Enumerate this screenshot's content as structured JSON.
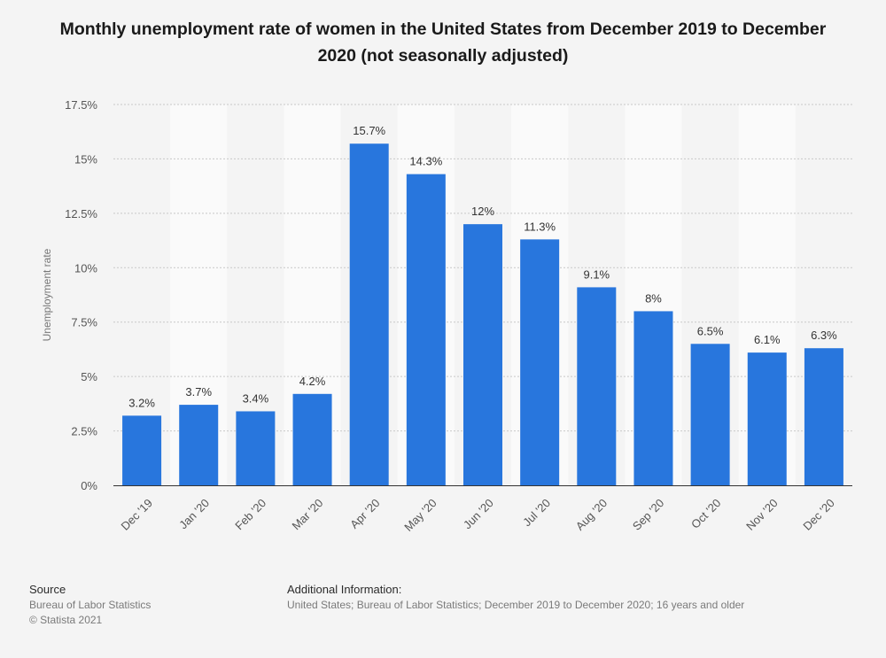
{
  "title": "Monthly unemployment rate of women in the United States from December 2019 to December 2020 (not seasonally adjusted)",
  "chart_data": {
    "type": "bar",
    "title": "Monthly unemployment rate of women in the United States from December 2019 to December 2020 (not seasonally adjusted)",
    "xlabel": "",
    "ylabel": "Unemployment rate",
    "ylim": [
      0,
      17.5
    ],
    "yticks": [
      0,
      2.5,
      5,
      7.5,
      10,
      12.5,
      15,
      17.5
    ],
    "ytick_labels": [
      "0%",
      "2.5%",
      "5%",
      "7.5%",
      "10%",
      "12.5%",
      "15%",
      "17.5%"
    ],
    "categories": [
      "Dec '19",
      "Jan '20",
      "Feb '20",
      "Mar '20",
      "Apr '20",
      "May '20",
      "Jun '20",
      "Jul '20",
      "Aug '20",
      "Sep '20",
      "Oct '20",
      "Nov '20",
      "Dec '20"
    ],
    "values": [
      3.2,
      3.7,
      3.4,
      4.2,
      15.7,
      14.3,
      12,
      11.3,
      9.1,
      8,
      6.5,
      6.1,
      6.3
    ],
    "data_labels": [
      "3.2%",
      "3.7%",
      "3.4%",
      "4.2%",
      "15.7%",
      "14.3%",
      "12%",
      "11.3%",
      "9.1%",
      "8%",
      "6.5%",
      "6.1%",
      "6.3%"
    ],
    "bar_color": "#2876dd",
    "grid": true
  },
  "footer": {
    "source_heading": "Source",
    "source_lines": [
      "Bureau of Labor Statistics",
      "© Statista 2021"
    ],
    "info_heading": "Additional Information:",
    "info_text": "United States; Bureau of Labor Statistics; December 2019 to December 2020; 16 years and older"
  }
}
